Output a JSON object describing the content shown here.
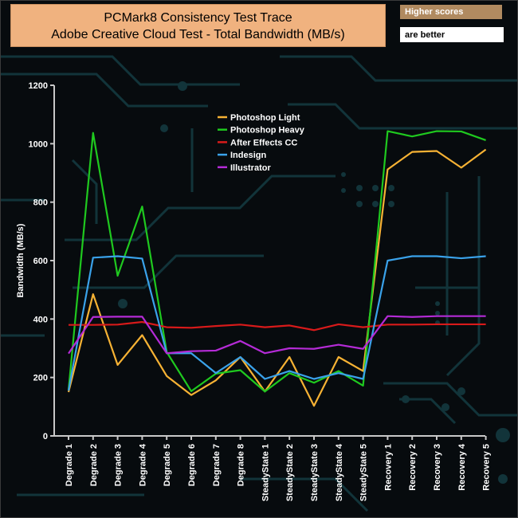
{
  "title_box": {
    "line1": "PCMark8 Consistency Test Trace",
    "line2": "Adobe Creative Cloud Test - Total Bandwidth (MB/s)"
  },
  "notes": {
    "higher": "Higher scores",
    "better": "are better"
  },
  "colors": {
    "title_bg": "#f0b27f",
    "photoshop_light": "#f6b234",
    "photoshop_heavy": "#1fc91f",
    "after_effects": "#d81a1a",
    "indesign": "#3aa2ea",
    "illustrator": "#b42bd6",
    "circuit": "#12343a"
  },
  "chart_data": {
    "type": "line",
    "title": "PCMark8 Consistency Test Trace",
    "subtitle": "Adobe Creative Cloud Test - Total Bandwidth (MB/s)",
    "xlabel": "",
    "ylabel": "Bandwidth (MB/s)",
    "ylim": [
      0,
      1200
    ],
    "yticks": [
      0,
      200,
      400,
      600,
      800,
      1000,
      1200
    ],
    "grid": false,
    "legend_position": "top-center",
    "categories": [
      "Degrade 1",
      "Degrade 2",
      "Degrade 3",
      "Degrade 4",
      "Degrade 5",
      "Degrade 6",
      "Degrade 7",
      "Degrade 8",
      "SteadyState 1",
      "SteadyState 2",
      "SteadyState 3",
      "SteadyState 4",
      "SteadyState 5",
      "Recovery 1",
      "Recovery 2",
      "Recovery 3",
      "Recovery 4",
      "Recovery 5"
    ],
    "series": [
      {
        "name": "Photoshop Light",
        "color": "#f6b234",
        "values": [
          150,
          485,
          243,
          345,
          205,
          140,
          190,
          270,
          152,
          270,
          103,
          270,
          222,
          912,
          972,
          975,
          918,
          980
        ]
      },
      {
        "name": " Photoshop Heavy",
        "color": "#1fc91f",
        "values": [
          157,
          1037,
          548,
          785,
          287,
          153,
          213,
          225,
          152,
          215,
          182,
          222,
          172,
          1043,
          1025,
          1043,
          1042,
          1012
        ]
      },
      {
        "name": "After Effects CC",
        "color": "#d81a1a",
        "values": [
          380,
          380,
          381,
          390,
          372,
          370,
          376,
          381,
          372,
          378,
          362,
          382,
          372,
          381,
          381,
          382,
          382,
          382
        ]
      },
      {
        "name": "Indesign",
        "color": "#3aa2ea",
        "values": [
          155,
          610,
          615,
          607,
          283,
          283,
          215,
          270,
          195,
          222,
          195,
          215,
          195,
          600,
          615,
          615,
          608,
          615
        ]
      },
      {
        "name": "Illustrator",
        "color": "#b42bd6",
        "values": [
          282,
          407,
          408,
          408,
          283,
          290,
          292,
          325,
          283,
          300,
          298,
          312,
          298,
          410,
          407,
          410,
          410,
          410
        ]
      }
    ]
  }
}
